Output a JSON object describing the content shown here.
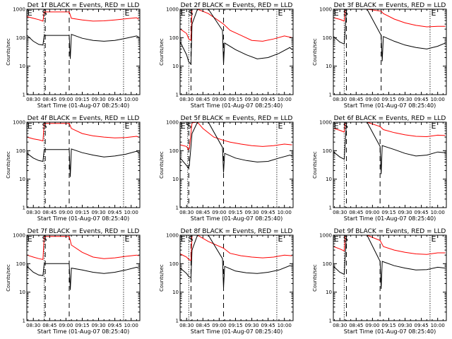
{
  "chart_data": [
    {
      "type": "line",
      "title": "Det 1f BLACK = Events, RED = LLD",
      "xlabel": "Start Time (01-Aug-07 08:25:40)",
      "ylabel": "Counts/sec",
      "xticks": [
        "08:30",
        "08:45",
        "09:00",
        "09:15",
        "09:30",
        "09:45",
        "10:00"
      ],
      "yticks": [
        "1",
        "10",
        "100",
        "1000"
      ],
      "ylog": true,
      "xlim": [
        -6,
        98
      ],
      "ylim": [
        1,
        1000
      ],
      "markers": [
        {
          "text": "E",
          "x": -5.5
        },
        {
          "text": "S",
          "x": 8
        },
        {
          "text": "E",
          "x": 84
        }
      ],
      "dotted_lines": [
        10,
        83
      ],
      "dashed_lines": [
        11,
        33
      ],
      "series": [
        {
          "color": "#ff0000",
          "x": [
            -5.8,
            0,
            5,
            8.8,
            10,
            33,
            35,
            45,
            55,
            65,
            75,
            85,
            95,
            97
          ],
          "y": [
            550,
            480,
            430,
            380,
            800,
            800,
            480,
            420,
            380,
            390,
            420,
            460,
            500,
            440
          ]
        },
        {
          "color": "#000000",
          "x": [
            -5.8,
            0,
            5,
            8.8,
            10,
            33,
            34,
            35,
            45,
            55,
            65,
            75,
            85,
            95,
            97
          ],
          "y": [
            120,
            75,
            58,
            55,
            120,
            120,
            18,
            130,
            95,
            80,
            75,
            80,
            95,
            115,
            105
          ]
        }
      ]
    },
    {
      "type": "line",
      "title": "Det 2f BLACK = Events, RED = LLD",
      "xlabel": "Start Time (01-Aug-07 08:25:40)",
      "ylabel": "Counts/sec",
      "xticks": [
        "08:30",
        "08:45",
        "09:00",
        "09:15",
        "09:30",
        "09:45",
        "10:00"
      ],
      "yticks": [
        "1",
        "10",
        "100",
        "1000"
      ],
      "ylog": true,
      "xlim": [
        -6,
        98
      ],
      "ylim": [
        1,
        1000
      ],
      "markers": [
        {
          "text": "E",
          "x": -5.5
        },
        {
          "text": "S",
          "x": 1.5
        },
        {
          "text": "E",
          "x": 84
        }
      ],
      "dotted_lines": [
        2,
        83
      ],
      "dashed_lines": [
        4,
        34
      ],
      "series": [
        {
          "color": "#ff0000",
          "x": [
            -5.8,
            0,
            2,
            4,
            5,
            10,
            20,
            34,
            40,
            50,
            60,
            70,
            80,
            90,
            97
          ],
          "y": [
            200,
            140,
            90,
            80,
            1000,
            1000,
            700,
            300,
            180,
            120,
            80,
            75,
            90,
            115,
            100
          ]
        },
        {
          "color": "#000000",
          "x": [
            -5.8,
            0,
            2,
            4,
            5,
            10,
            20,
            33,
            34,
            35,
            45,
            55,
            65,
            75,
            85,
            95,
            97
          ],
          "y": [
            70,
            25,
            14,
            12,
            300,
            1000,
            1000,
            180,
            12,
            65,
            38,
            25,
            18,
            20,
            28,
            45,
            38
          ]
        }
      ]
    },
    {
      "type": "line",
      "title": "Det 3f BLACK = Events, RED = LLD",
      "xlabel": "Start Time (01-Aug-07 08:25:40)",
      "ylabel": "Counts/sec",
      "xticks": [
        "08:30",
        "08:45",
        "09:00",
        "09:15",
        "09:30",
        "09:45",
        "10:00"
      ],
      "yticks": [
        "1",
        "10",
        "100",
        "1000"
      ],
      "ylog": true,
      "xlim": [
        -6,
        98
      ],
      "ylim": [
        1,
        1000
      ],
      "markers": [
        {
          "text": "E",
          "x": -5.5
        },
        {
          "text": "S",
          "x": 3
        },
        {
          "text": "E",
          "x": 84
        }
      ],
      "dotted_lines": [
        4,
        83
      ],
      "dashed_lines": [
        6,
        38
      ],
      "series": [
        {
          "color": "#ff0000",
          "x": [
            -5.8,
            0,
            4,
            5,
            10,
            25,
            38,
            40,
            50,
            60,
            70,
            80,
            90,
            97
          ],
          "y": [
            500,
            440,
            380,
            1000,
            1000,
            1000,
            850,
            700,
            450,
            330,
            270,
            240,
            250,
            250
          ]
        },
        {
          "color": "#000000",
          "x": [
            -5.8,
            0,
            4,
            5,
            6,
            10,
            25,
            38,
            39,
            40,
            50,
            60,
            70,
            80,
            90,
            97
          ],
          "y": [
            110,
            70,
            60,
            200,
            1000,
            1000,
            1000,
            120,
            15,
            110,
            75,
            55,
            45,
            40,
            50,
            65
          ]
        }
      ]
    },
    {
      "type": "line",
      "title": "Det 4f BLACK = Events, RED = LLD",
      "xlabel": "Start Time (01-Aug-07 08:25:40)",
      "ylabel": "Counts/sec",
      "xticks": [
        "08:30",
        "08:45",
        "09:00",
        "09:15",
        "09:30",
        "09:45",
        "10:00"
      ],
      "yticks": [
        "1",
        "10",
        "100",
        "1000"
      ],
      "ylog": true,
      "xlim": [
        -6,
        98
      ],
      "ylim": [
        1,
        1000
      ],
      "markers": [
        {
          "text": "E",
          "x": -5.5
        },
        {
          "text": "S",
          "x": 8
        },
        {
          "text": "E",
          "x": 84
        }
      ],
      "dotted_lines": [
        10,
        83
      ],
      "dashed_lines": [
        11,
        33
      ],
      "series": [
        {
          "color": "#ff0000",
          "x": [
            -5.8,
            0,
            5,
            8.8,
            10,
            33,
            35,
            45,
            55,
            65,
            75,
            85,
            95,
            97
          ],
          "y": [
            300,
            260,
            240,
            220,
            900,
            900,
            600,
            400,
            330,
            300,
            280,
            290,
            320,
            300
          ]
        },
        {
          "color": "#000000",
          "x": [
            -5.8,
            0,
            5,
            8.8,
            10,
            33,
            34,
            35,
            45,
            55,
            65,
            75,
            85,
            95,
            97
          ],
          "y": [
            80,
            55,
            45,
            42,
            110,
            110,
            12,
            115,
            85,
            70,
            60,
            65,
            75,
            95,
            85
          ]
        }
      ]
    },
    {
      "type": "line",
      "title": "Det 5f BLACK = Events, RED = LLD",
      "xlabel": "Start Time (01-Aug-07 08:25:40)",
      "ylabel": "Counts/sec",
      "xticks": [
        "08:30",
        "08:45",
        "09:00",
        "09:15",
        "09:30",
        "09:45",
        "10:00"
      ],
      "yticks": [
        "1",
        "10",
        "100",
        "1000"
      ],
      "ylog": true,
      "xlim": [
        -6,
        98
      ],
      "ylim": [
        1,
        1000
      ],
      "markers": [
        {
          "text": "E",
          "x": -5.5
        },
        {
          "text": "S",
          "x": 0
        },
        {
          "text": "E",
          "x": 84
        }
      ],
      "dotted_lines": [
        1,
        83
      ],
      "dashed_lines": [
        2,
        34
      ],
      "series": [
        {
          "color": "#ff0000",
          "x": [
            -5.8,
            0,
            1.5,
            2.5,
            5,
            10,
            15,
            25,
            34,
            40,
            50,
            60,
            70,
            80,
            90,
            97
          ],
          "y": [
            160,
            140,
            110,
            120,
            950,
            1000,
            600,
            300,
            230,
            200,
            170,
            150,
            140,
            150,
            170,
            160
          ]
        },
        {
          "color": "#000000",
          "x": [
            -5.8,
            0,
            1.5,
            2.5,
            5,
            10,
            20,
            33,
            34,
            35,
            45,
            55,
            65,
            75,
            85,
            95,
            97
          ],
          "y": [
            55,
            30,
            25,
            30,
            400,
            1000,
            1000,
            130,
            17,
            80,
            55,
            45,
            40,
            42,
            55,
            70,
            65
          ]
        }
      ]
    },
    {
      "type": "line",
      "title": "Det 6f BLACK = Events, RED = LLD",
      "xlabel": "Start Time (01-Aug-07 08:25:40)",
      "ylabel": "Counts/sec",
      "xticks": [
        "08:30",
        "08:45",
        "09:00",
        "09:15",
        "09:30",
        "09:45",
        "10:00"
      ],
      "yticks": [
        "1",
        "10",
        "100",
        "1000"
      ],
      "ylog": true,
      "xlim": [
        -6,
        98
      ],
      "ylim": [
        1,
        1000
      ],
      "markers": [
        {
          "text": "E",
          "x": -5.5
        },
        {
          "text": "S",
          "x": 3
        },
        {
          "text": "E",
          "x": 84
        }
      ],
      "dotted_lines": [
        4,
        83
      ],
      "dashed_lines": [
        6,
        37
      ],
      "series": [
        {
          "color": "#ff0000",
          "x": [
            -5.8,
            0,
            4,
            5,
            10,
            25,
            37,
            40,
            50,
            60,
            70,
            80,
            90,
            97
          ],
          "y": [
            600,
            520,
            450,
            1000,
            1000,
            1000,
            700,
            550,
            430,
            360,
            320,
            310,
            350,
            340
          ]
        },
        {
          "color": "#000000",
          "x": [
            -5.8,
            0,
            4,
            5,
            6,
            10,
            25,
            37,
            38,
            39,
            50,
            60,
            70,
            80,
            90,
            97
          ],
          "y": [
            90,
            60,
            50,
            200,
            1000,
            1000,
            1000,
            140,
            15,
            150,
            110,
            80,
            65,
            70,
            90,
            85
          ]
        }
      ]
    },
    {
      "type": "line",
      "title": "Det 7f BLACK = Events, RED = LLD",
      "xlabel": "Start Time (01-Aug-07 08:25:40)",
      "ylabel": "Counts/sec",
      "xticks": [
        "08:30",
        "08:45",
        "09:00",
        "09:15",
        "09:30",
        "09:45",
        "10:00"
      ],
      "yticks": [
        "1",
        "10",
        "100",
        "1000"
      ],
      "ylog": true,
      "xlim": [
        -6,
        98
      ],
      "ylim": [
        1,
        1000
      ],
      "markers": [
        {
          "text": "E",
          "x": -5.5
        },
        {
          "text": "S",
          "x": 8
        },
        {
          "text": "E",
          "x": 84
        }
      ],
      "dotted_lines": [
        10,
        83
      ],
      "dashed_lines": [
        11,
        33
      ],
      "series": [
        {
          "color": "#ff0000",
          "x": [
            -5.8,
            0,
            5,
            8.8,
            10,
            33,
            35,
            45,
            55,
            65,
            75,
            85,
            95,
            97
          ],
          "y": [
            200,
            170,
            150,
            140,
            900,
            900,
            450,
            250,
            170,
            150,
            160,
            180,
            200,
            190
          ]
        },
        {
          "color": "#000000",
          "x": [
            -5.8,
            0,
            5,
            8.8,
            10,
            33,
            34,
            35,
            45,
            55,
            65,
            75,
            85,
            95,
            97
          ],
          "y": [
            80,
            50,
            40,
            38,
            100,
            100,
            12,
            70,
            60,
            50,
            45,
            50,
            60,
            75,
            70
          ]
        }
      ]
    },
    {
      "type": "line",
      "title": "Det 8f BLACK = Events, RED = LLD",
      "xlabel": "Start Time (01-Aug-07 08:25:40)",
      "ylabel": "Counts/sec",
      "xticks": [
        "08:30",
        "08:45",
        "09:00",
        "09:15",
        "09:30",
        "09:45",
        "10:00"
      ],
      "yticks": [
        "1",
        "10",
        "100",
        "1000"
      ],
      "ylog": true,
      "xlim": [
        -6,
        98
      ],
      "ylim": [
        1,
        1000
      ],
      "markers": [
        {
          "text": "E",
          "x": -5.5
        },
        {
          "text": "S",
          "x": 1.5
        },
        {
          "text": "E",
          "x": 84
        }
      ],
      "dotted_lines": [
        2,
        83
      ],
      "dashed_lines": [
        4,
        34
      ],
      "series": [
        {
          "color": "#ff0000",
          "x": [
            -5.8,
            0,
            2,
            4,
            5,
            10,
            20,
            34,
            40,
            50,
            60,
            70,
            80,
            90,
            97
          ],
          "y": [
            220,
            170,
            140,
            130,
            1000,
            1000,
            600,
            350,
            230,
            190,
            170,
            160,
            170,
            200,
            190
          ]
        },
        {
          "color": "#000000",
          "x": [
            -5.8,
            0,
            2,
            4,
            5,
            10,
            20,
            33,
            34,
            35,
            45,
            55,
            65,
            75,
            85,
            95,
            97
          ],
          "y": [
            70,
            45,
            35,
            33,
            300,
            1000,
            1000,
            150,
            14,
            80,
            55,
            48,
            45,
            50,
            60,
            85,
            80
          ]
        }
      ]
    },
    {
      "type": "line",
      "title": "Det 9f BLACK = Events, RED = LLD",
      "xlabel": "Start Time (01-Aug-07 08:25:40)",
      "ylabel": "Counts/sec",
      "xticks": [
        "08:30",
        "08:45",
        "09:00",
        "09:15",
        "09:30",
        "09:45",
        "10:00"
      ],
      "yticks": [
        "1",
        "10",
        "100",
        "1000"
      ],
      "ylog": true,
      "xlim": [
        -6,
        98
      ],
      "ylim": [
        1,
        1000
      ],
      "markers": [
        {
          "text": "E",
          "x": -5.5
        },
        {
          "text": "S",
          "x": 3
        },
        {
          "text": "E",
          "x": 84
        }
      ],
      "dotted_lines": [
        4,
        83
      ],
      "dashed_lines": [
        6,
        37
      ],
      "series": [
        {
          "color": "#ff0000",
          "x": [
            -5.8,
            0,
            4,
            5,
            10,
            25,
            37,
            40,
            50,
            60,
            70,
            80,
            90,
            97
          ],
          "y": [
            400,
            330,
            280,
            1000,
            1000,
            1000,
            650,
            400,
            300,
            250,
            220,
            210,
            240,
            240
          ]
        },
        {
          "color": "#000000",
          "x": [
            -5.8,
            0,
            4,
            5,
            6,
            10,
            25,
            37,
            38,
            39,
            50,
            60,
            70,
            80,
            90,
            97
          ],
          "y": [
            80,
            50,
            42,
            200,
            1000,
            1000,
            1000,
            120,
            13,
            120,
            85,
            70,
            60,
            62,
            75,
            70
          ]
        }
      ]
    }
  ]
}
